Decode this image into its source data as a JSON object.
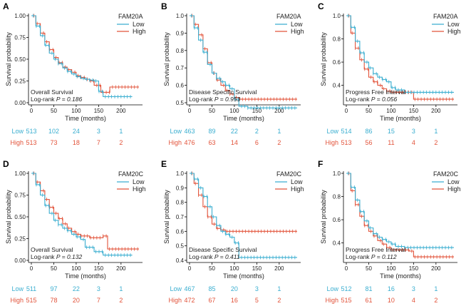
{
  "colors": {
    "low": "#3aaed0",
    "high": "#e2533a",
    "axis": "#000000",
    "text": "#222222"
  },
  "chart_data": [
    {
      "type": "line",
      "panel_letter": "A",
      "gene": "FAM20A",
      "ylabel": "Survival probability",
      "xlabel": "Time (months)",
      "xlim": [
        0,
        240
      ],
      "ylim": [
        0,
        1
      ],
      "xticks": [
        0,
        50,
        100,
        150,
        200
      ],
      "xtick_labels": [
        "0",
        "50",
        "100",
        "150",
        "200"
      ],
      "yticks": [
        0,
        0.25,
        0.5,
        0.75,
        1
      ],
      "ytick_labels": [
        "0.00",
        "0.25",
        "0.50",
        "0.75",
        "1.00"
      ],
      "annotation": "Overall Survival",
      "logrank_label": "Log-rank",
      "p_label": "P = 0.186",
      "legend": [
        "Low",
        "High"
      ],
      "risk_times": [
        0,
        50,
        100,
        150,
        200
      ],
      "series": [
        {
          "name": "Low",
          "points": [
            [
              0,
              1
            ],
            [
              10,
              0.88
            ],
            [
              20,
              0.77
            ],
            [
              30,
              0.66
            ],
            [
              40,
              0.57
            ],
            [
              50,
              0.5
            ],
            [
              60,
              0.45
            ],
            [
              70,
              0.4
            ],
            [
              80,
              0.36
            ],
            [
              90,
              0.33
            ],
            [
              100,
              0.3
            ],
            [
              110,
              0.28
            ],
            [
              120,
              0.27
            ],
            [
              130,
              0.26
            ],
            [
              140,
              0.25
            ],
            [
              150,
              0.13
            ],
            [
              160,
              0.07
            ],
            [
              225,
              0.07
            ]
          ],
          "risk": [
            513,
            102,
            24,
            3,
            1
          ]
        },
        {
          "name": "High",
          "points": [
            [
              0,
              1
            ],
            [
              10,
              0.91
            ],
            [
              20,
              0.8
            ],
            [
              30,
              0.7
            ],
            [
              40,
              0.61
            ],
            [
              50,
              0.52
            ],
            [
              60,
              0.46
            ],
            [
              70,
              0.41
            ],
            [
              80,
              0.38
            ],
            [
              90,
              0.35
            ],
            [
              100,
              0.31
            ],
            [
              110,
              0.29
            ],
            [
              120,
              0.27
            ],
            [
              130,
              0.25
            ],
            [
              140,
              0.2
            ],
            [
              155,
              0.12
            ],
            [
              175,
              0.18
            ],
            [
              240,
              0.18
            ]
          ],
          "risk": [
            513,
            73,
            18,
            7,
            2
          ]
        }
      ]
    },
    {
      "type": "line",
      "panel_letter": "B",
      "gene": "FAM20A",
      "ylabel": "Survival probability",
      "xlabel": "Time (months)",
      "xlim": [
        0,
        240
      ],
      "ylim": [
        0.5,
        1
      ],
      "xticks": [
        0,
        50,
        100,
        150,
        200
      ],
      "xtick_labels": [
        "0",
        "50",
        "100",
        "150",
        "200"
      ],
      "yticks": [
        0.5,
        0.6,
        0.7,
        0.8,
        0.9,
        1.0
      ],
      "ytick_labels": [
        "0.5",
        "0.6",
        "0.7",
        "0.8",
        "0.9",
        "1.0"
      ],
      "annotation": "Disease Specific Survival",
      "logrank_label": "Log-rank",
      "p_label": "P = 0.953",
      "legend": [
        "Low",
        "High"
      ],
      "risk_times": [
        0,
        50,
        100,
        150,
        200
      ],
      "series": [
        {
          "name": "Low",
          "points": [
            [
              0,
              1
            ],
            [
              10,
              0.93
            ],
            [
              20,
              0.86
            ],
            [
              30,
              0.79
            ],
            [
              40,
              0.72
            ],
            [
              50,
              0.67
            ],
            [
              60,
              0.64
            ],
            [
              70,
              0.62
            ],
            [
              80,
              0.6
            ],
            [
              90,
              0.58
            ],
            [
              100,
              0.52
            ],
            [
              110,
              0.48
            ],
            [
              130,
              0.47
            ],
            [
              240,
              0.47
            ]
          ],
          "risk": [
            463,
            89,
            22,
            2,
            1
          ]
        },
        {
          "name": "High",
          "points": [
            [
              0,
              1
            ],
            [
              10,
              0.95
            ],
            [
              20,
              0.89
            ],
            [
              30,
              0.81
            ],
            [
              40,
              0.73
            ],
            [
              50,
              0.67
            ],
            [
              60,
              0.63
            ],
            [
              70,
              0.6
            ],
            [
              80,
              0.57
            ],
            [
              90,
              0.55
            ],
            [
              100,
              0.53
            ],
            [
              110,
              0.52
            ],
            [
              240,
              0.52
            ]
          ],
          "risk": [
            476,
            63,
            14,
            6,
            2
          ]
        }
      ]
    },
    {
      "type": "line",
      "panel_letter": "C",
      "gene": "FAM20A",
      "ylabel": "Survival probability",
      "xlabel": "Time (months)",
      "xlim": [
        0,
        240
      ],
      "ylim": [
        0.25,
        1
      ],
      "xticks": [
        0,
        50,
        100,
        150,
        200
      ],
      "xtick_labels": [
        "0",
        "50",
        "100",
        "150",
        "200"
      ],
      "yticks": [
        0.4,
        0.6,
        0.8,
        1.0
      ],
      "ytick_labels": [
        "0.4",
        "0.6",
        "0.8",
        "1.0"
      ],
      "annotation": "Progress Free Interval",
      "logrank_label": "Log-rank",
      "p_label": "P = 0.056",
      "legend": [
        "Low",
        "High"
      ],
      "risk_times": [
        0,
        50,
        100,
        150,
        200
      ],
      "series": [
        {
          "name": "Low",
          "points": [
            [
              0,
              1
            ],
            [
              10,
              0.9
            ],
            [
              20,
              0.78
            ],
            [
              30,
              0.68
            ],
            [
              40,
              0.6
            ],
            [
              50,
              0.55
            ],
            [
              60,
              0.5
            ],
            [
              70,
              0.47
            ],
            [
              80,
              0.45
            ],
            [
              90,
              0.43
            ],
            [
              100,
              0.38
            ],
            [
              110,
              0.36
            ],
            [
              130,
              0.34
            ],
            [
              240,
              0.34
            ]
          ],
          "risk": [
            514,
            86,
            15,
            3,
            1
          ]
        },
        {
          "name": "High",
          "points": [
            [
              0,
              1
            ],
            [
              10,
              0.85
            ],
            [
              20,
              0.72
            ],
            [
              30,
              0.62
            ],
            [
              40,
              0.54
            ],
            [
              50,
              0.47
            ],
            [
              60,
              0.43
            ],
            [
              70,
              0.4
            ],
            [
              80,
              0.37
            ],
            [
              90,
              0.35
            ],
            [
              100,
              0.34
            ],
            [
              150,
              0.28
            ],
            [
              240,
              0.28
            ]
          ],
          "risk": [
            513,
            56,
            11,
            4,
            2
          ]
        }
      ]
    },
    {
      "type": "line",
      "panel_letter": "D",
      "gene": "FAM20C",
      "ylabel": "Survival probability",
      "xlabel": "Time (months)",
      "xlim": [
        0,
        240
      ],
      "ylim": [
        0,
        1
      ],
      "xticks": [
        0,
        50,
        100,
        150,
        200
      ],
      "xtick_labels": [
        "0",
        "50",
        "100",
        "150",
        "200"
      ],
      "yticks": [
        0,
        0.25,
        0.5,
        0.75,
        1
      ],
      "ytick_labels": [
        "0.00",
        "0.25",
        "0.50",
        "0.75",
        "1.00"
      ],
      "annotation": "Overall Survival",
      "logrank_label": "Log-rank",
      "p_label": "P = 0.132",
      "legend": [
        "Low",
        "High"
      ],
      "risk_times": [
        0,
        50,
        100,
        150,
        200
      ],
      "series": [
        {
          "name": "Low",
          "points": [
            [
              0,
              1
            ],
            [
              10,
              0.87
            ],
            [
              20,
              0.75
            ],
            [
              30,
              0.63
            ],
            [
              40,
              0.54
            ],
            [
              50,
              0.46
            ],
            [
              60,
              0.41
            ],
            [
              70,
              0.37
            ],
            [
              80,
              0.34
            ],
            [
              90,
              0.3
            ],
            [
              100,
              0.27
            ],
            [
              110,
              0.24
            ],
            [
              120,
              0.15
            ],
            [
              140,
              0.1
            ],
            [
              160,
              0.06
            ],
            [
              225,
              0.06
            ]
          ],
          "risk": [
            511,
            97,
            22,
            3,
            1
          ]
        },
        {
          "name": "High",
          "points": [
            [
              0,
              1
            ],
            [
              10,
              0.9
            ],
            [
              20,
              0.8
            ],
            [
              30,
              0.7
            ],
            [
              40,
              0.61
            ],
            [
              50,
              0.54
            ],
            [
              60,
              0.48
            ],
            [
              70,
              0.42
            ],
            [
              80,
              0.37
            ],
            [
              90,
              0.33
            ],
            [
              100,
              0.3
            ],
            [
              110,
              0.28
            ],
            [
              130,
              0.26
            ],
            [
              160,
              0.28
            ],
            [
              170,
              0.13
            ],
            [
              240,
              0.13
            ]
          ],
          "risk": [
            515,
            78,
            20,
            7,
            2
          ]
        }
      ]
    },
    {
      "type": "line",
      "panel_letter": "E",
      "gene": "FAM20C",
      "ylabel": "Survival probability",
      "xlabel": "Time (months)",
      "xlim": [
        0,
        240
      ],
      "ylim": [
        0.4,
        1
      ],
      "xticks": [
        0,
        50,
        100,
        150,
        200
      ],
      "xtick_labels": [
        "0",
        "50",
        "100",
        "150",
        "200"
      ],
      "yticks": [
        0.4,
        0.5,
        0.6,
        0.7,
        0.8,
        0.9,
        1.0
      ],
      "ytick_labels": [
        "0.4",
        "0.5",
        "0.6",
        "0.7",
        "0.8",
        "0.9",
        "1.0"
      ],
      "annotation": "Disease Specific Survival",
      "logrank_label": "Log-rank",
      "p_label": "P = 0.411",
      "legend": [
        "Low",
        "High"
      ],
      "risk_times": [
        0,
        50,
        100,
        150,
        200
      ],
      "series": [
        {
          "name": "Low",
          "points": [
            [
              0,
              1
            ],
            [
              10,
              0.96
            ],
            [
              20,
              0.9
            ],
            [
              30,
              0.84
            ],
            [
              40,
              0.77
            ],
            [
              50,
              0.7
            ],
            [
              60,
              0.64
            ],
            [
              70,
              0.6
            ],
            [
              80,
              0.58
            ],
            [
              90,
              0.56
            ],
            [
              100,
              0.52
            ],
            [
              110,
              0.42
            ],
            [
              240,
              0.42
            ]
          ],
          "risk": [
            467,
            85,
            20,
            3,
            1
          ]
        },
        {
          "name": "High",
          "points": [
            [
              0,
              1
            ],
            [
              10,
              0.93
            ],
            [
              20,
              0.85
            ],
            [
              30,
              0.77
            ],
            [
              40,
              0.7
            ],
            [
              50,
              0.65
            ],
            [
              60,
              0.62
            ],
            [
              70,
              0.61
            ],
            [
              80,
              0.6
            ],
            [
              240,
              0.6
            ]
          ],
          "risk": [
            472,
            67,
            16,
            5,
            2
          ]
        }
      ]
    },
    {
      "type": "line",
      "panel_letter": "F",
      "gene": "FAM20C",
      "ylabel": "Survival probability",
      "xlabel": "Time (months)",
      "xlim": [
        0,
        240
      ],
      "ylim": [
        0.25,
        1
      ],
      "xticks": [
        0,
        50,
        100,
        150,
        200
      ],
      "xtick_labels": [
        "0",
        "50",
        "100",
        "150",
        "200"
      ],
      "yticks": [
        0.4,
        0.6,
        0.8,
        1.0
      ],
      "ytick_labels": [
        "0.4",
        "0.6",
        "0.8",
        "1.0"
      ],
      "annotation": "Progress Free Interval",
      "logrank_label": "Log-rank",
      "p_label": "P = 0.112",
      "legend": [
        "Low",
        "High"
      ],
      "risk_times": [
        0,
        50,
        100,
        150,
        200
      ],
      "series": [
        {
          "name": "Low",
          "points": [
            [
              0,
              1
            ],
            [
              10,
              0.88
            ],
            [
              20,
              0.77
            ],
            [
              30,
              0.67
            ],
            [
              40,
              0.59
            ],
            [
              50,
              0.53
            ],
            [
              60,
              0.48
            ],
            [
              70,
              0.45
            ],
            [
              80,
              0.43
            ],
            [
              90,
              0.41
            ],
            [
              100,
              0.39
            ],
            [
              110,
              0.37
            ],
            [
              130,
              0.36
            ],
            [
              240,
              0.36
            ]
          ],
          "risk": [
            512,
            81,
            16,
            3,
            1
          ]
        },
        {
          "name": "High",
          "points": [
            [
              0,
              1
            ],
            [
              10,
              0.85
            ],
            [
              20,
              0.73
            ],
            [
              30,
              0.63
            ],
            [
              40,
              0.55
            ],
            [
              50,
              0.5
            ],
            [
              60,
              0.46
            ],
            [
              70,
              0.42
            ],
            [
              80,
              0.39
            ],
            [
              90,
              0.36
            ],
            [
              100,
              0.34
            ],
            [
              140,
              0.33
            ],
            [
              150,
              0.28
            ],
            [
              240,
              0.28
            ]
          ],
          "risk": [
            515,
            61,
            10,
            4,
            2
          ]
        }
      ]
    }
  ]
}
